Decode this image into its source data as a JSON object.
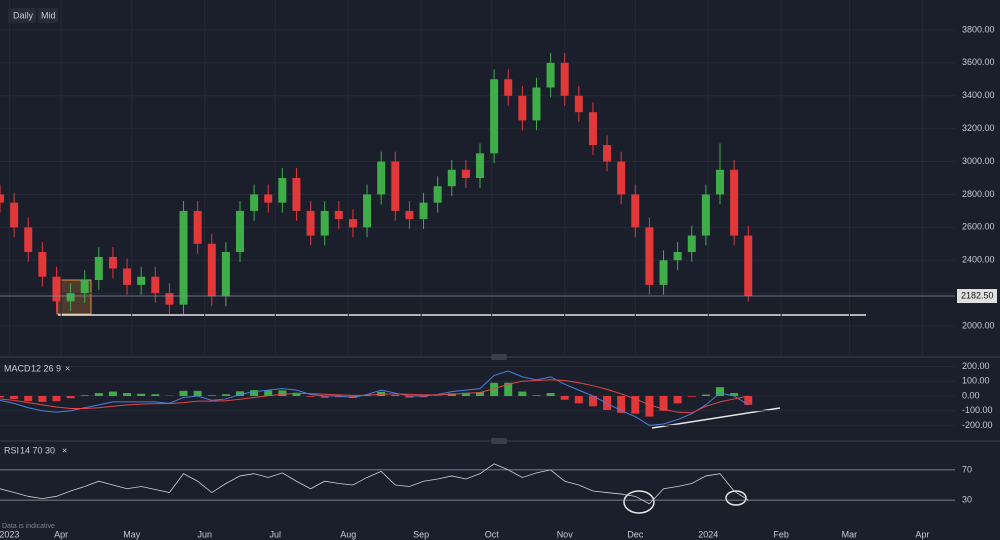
{
  "toolbar": {
    "interval": "Daily",
    "price_side": "Mid",
    "footnote": "Data is indicative"
  },
  "chart_data": [
    {
      "type": "candlestick",
      "x": [
        64,
        70,
        76,
        82,
        88,
        94,
        100,
        106,
        112,
        118,
        124,
        130,
        136,
        142,
        148,
        154,
        160,
        166,
        172,
        178,
        184,
        190,
        196,
        202,
        208,
        214,
        220,
        226,
        232,
        238,
        244,
        250,
        256,
        262,
        268,
        274,
        280,
        286,
        292,
        298,
        304,
        310,
        316,
        322,
        328,
        334,
        340,
        346,
        352,
        358,
        364,
        370,
        376,
        382
      ],
      "open": [
        2800,
        2750,
        2600,
        2450,
        2300,
        2150,
        2200,
        2280,
        2420,
        2350,
        2250,
        2300,
        2200,
        2130,
        2700,
        2500,
        2180,
        2450,
        2700,
        2800,
        2750,
        2900,
        2700,
        2550,
        2700,
        2650,
        2600,
        2800,
        3000,
        2700,
        2650,
        2750,
        2850,
        2950,
        2900,
        3050,
        3500,
        3400,
        3250,
        3450,
        3600,
        3400,
        3300,
        3100,
        3000,
        2800,
        2600,
        2250,
        2400,
        2450,
        2550,
        2800,
        2950,
        2550
      ],
      "high": [
        2860,
        2810,
        2660,
        2510,
        2360,
        2260,
        2340,
        2480,
        2480,
        2410,
        2360,
        2360,
        2260,
        2760,
        2760,
        2560,
        2510,
        2760,
        2860,
        2860,
        2960,
        2960,
        2760,
        2760,
        2760,
        2710,
        2860,
        3060,
        3060,
        2760,
        2810,
        2910,
        3010,
        3010,
        3110,
        3560,
        3560,
        3460,
        3510,
        3660,
        3660,
        3460,
        3360,
        3160,
        3060,
        2860,
        2660,
        2460,
        2510,
        2610,
        2860,
        3110,
        3010,
        2610
      ],
      "low": [
        2690,
        2540,
        2390,
        2240,
        2090,
        2090,
        2140,
        2220,
        2290,
        2190,
        2190,
        2140,
        2070,
        2070,
        2440,
        2120,
        2120,
        2390,
        2640,
        2690,
        2690,
        2640,
        2490,
        2490,
        2590,
        2540,
        2540,
        2740,
        2640,
        2590,
        2590,
        2690,
        2790,
        2840,
        2840,
        2990,
        3340,
        3190,
        3190,
        3390,
        3340,
        3240,
        3040,
        2940,
        2740,
        2540,
        2190,
        2190,
        2340,
        2390,
        2490,
        2740,
        2490,
        2150
      ],
      "close": [
        2750,
        2600,
        2450,
        2300,
        2150,
        2200,
        2280,
        2420,
        2350,
        2250,
        2300,
        2200,
        2130,
        2700,
        2500,
        2180,
        2450,
        2700,
        2800,
        2750,
        2900,
        2700,
        2550,
        2700,
        2650,
        2600,
        2800,
        3000,
        2700,
        2650,
        2750,
        2850,
        2950,
        2900,
        3050,
        3500,
        3400,
        3250,
        3450,
        3600,
        3400,
        3300,
        3100,
        3000,
        2800,
        2600,
        2250,
        2400,
        2450,
        2550,
        2800,
        2950,
        2550,
        2182.5
      ],
      "up_color": "#3fae49",
      "down_color": "#e2383a",
      "xlim": [
        64,
        489
      ],
      "xticks": [
        {
          "value": 68,
          "label": "2023"
        },
        {
          "value": 90,
          "label": "Apr"
        },
        {
          "value": 120,
          "label": "May"
        },
        {
          "value": 151,
          "label": "Jun"
        },
        {
          "value": 181,
          "label": "Jul"
        },
        {
          "value": 212,
          "label": "Aug"
        },
        {
          "value": 243,
          "label": "Sep"
        },
        {
          "value": 273,
          "label": "Oct"
        },
        {
          "value": 304,
          "label": "Nov"
        },
        {
          "value": 334,
          "label": "Dec"
        },
        {
          "value": 365,
          "label": "2024"
        },
        {
          "value": 396,
          "label": "Feb"
        },
        {
          "value": 425,
          "label": "Mar"
        },
        {
          "value": 456,
          "label": "Apr"
        }
      ],
      "ylim": [
        1824,
        3982
      ],
      "yticks": [
        {
          "value": 2000,
          "label": "2000.00"
        },
        {
          "value": 2200,
          "label": "2200.00"
        },
        {
          "value": 2400,
          "label": "2400.00"
        },
        {
          "value": 2600,
          "label": "2600.00"
        },
        {
          "value": 2800,
          "label": "2800.00"
        },
        {
          "value": 3000,
          "label": "3000.00"
        },
        {
          "value": 3200,
          "label": "3200.00"
        },
        {
          "value": 3400,
          "label": "3400.00"
        },
        {
          "value": 3600,
          "label": "3600.00"
        },
        {
          "value": 3800,
          "label": "3800.00"
        }
      ],
      "last_price": {
        "value": 2182.5,
        "label": "2182.50"
      },
      "grid": true
    },
    {
      "type": "macd",
      "title": "MACD",
      "params": "12 26 9",
      "macd": [
        -30,
        -50,
        -80,
        -100,
        -110,
        -100,
        -80,
        -60,
        -40,
        -40,
        -40,
        -40,
        -50,
        -10,
        0,
        -30,
        -20,
        10,
        30,
        40,
        50,
        40,
        10,
        0,
        0,
        -10,
        10,
        40,
        20,
        0,
        0,
        10,
        30,
        40,
        50,
        140,
        170,
        130,
        110,
        130,
        80,
        40,
        0,
        -50,
        -100,
        -140,
        -200,
        -190,
        -160,
        -120,
        -60,
        20,
        0,
        -60
      ],
      "signal": [
        -20,
        -30,
        -45,
        -60,
        -75,
        -85,
        -85,
        -80,
        -70,
        -60,
        -55,
        -52,
        -52,
        -45,
        -35,
        -35,
        -32,
        -22,
        -10,
        2,
        12,
        18,
        16,
        12,
        8,
        4,
        5,
        12,
        14,
        11,
        8,
        8,
        12,
        18,
        24,
        50,
        80,
        100,
        105,
        110,
        105,
        90,
        70,
        45,
        15,
        -20,
        -60,
        -90,
        -110,
        -115,
        -70,
        -40,
        -20,
        0
      ],
      "histogram": [
        -10,
        -20,
        -35,
        -40,
        -35,
        -15,
        5,
        20,
        30,
        20,
        15,
        12,
        2,
        35,
        35,
        5,
        12,
        32,
        40,
        38,
        38,
        22,
        -6,
        -12,
        -8,
        -14,
        5,
        28,
        6,
        -11,
        -8,
        2,
        18,
        22,
        26,
        90,
        90,
        30,
        5,
        20,
        -25,
        -50,
        -70,
        -95,
        -115,
        -120,
        -140,
        -100,
        -50,
        -5,
        10,
        60,
        20,
        -60
      ],
      "macd_color": "#4a7fe0",
      "signal_color": "#e04848",
      "up_color": "#3fae49",
      "down_color": "#e2383a",
      "ylim": [
        -299,
        231
      ],
      "yticks": [
        {
          "value": 200,
          "label": "200.00"
        },
        {
          "value": 100,
          "label": "100.00"
        },
        {
          "value": 0,
          "label": "0.00"
        },
        {
          "value": -100,
          "label": "-100.00"
        },
        {
          "value": -200,
          "label": "-200.00"
        }
      ]
    },
    {
      "type": "rsi",
      "title": "RSI",
      "params": "14 70 30",
      "values": [
        45,
        40,
        35,
        32,
        35,
        42,
        48,
        55,
        50,
        45,
        48,
        44,
        40,
        65,
        55,
        40,
        52,
        62,
        65,
        60,
        66,
        55,
        45,
        55,
        52,
        50,
        60,
        68,
        50,
        48,
        55,
        58,
        62,
        58,
        65,
        78,
        70,
        60,
        66,
        70,
        55,
        50,
        42,
        40,
        38,
        35,
        25,
        45,
        48,
        52,
        62,
        65,
        42,
        30
      ],
      "color": "#d0d0d0",
      "ylim": [
        1,
        99
      ],
      "yticks": [
        70,
        30
      ]
    }
  ]
}
